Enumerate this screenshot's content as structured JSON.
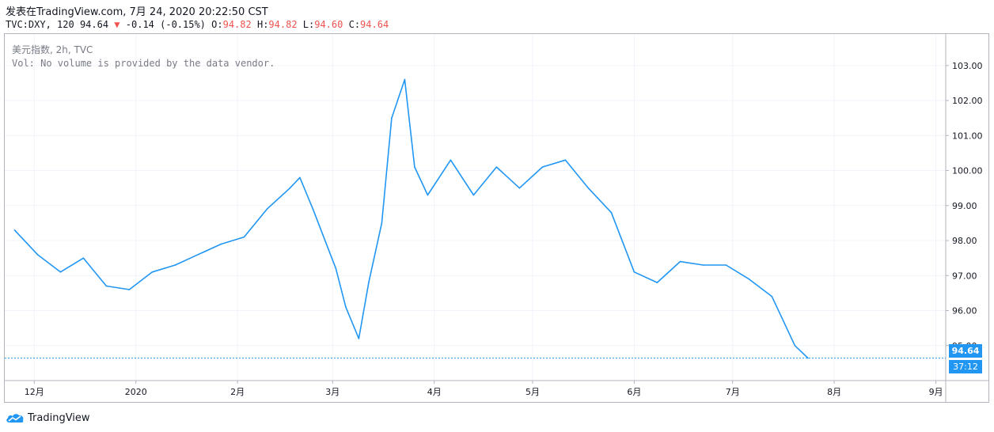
{
  "header": {
    "line1": "发表在TradingView.com, 7月 24, 2020 20:22:50 CST",
    "symbol": "TVC:DXY, 120",
    "last": "94.64",
    "down_arrow": "▼",
    "change": "-0.14 (-0.15%)",
    "o_label": "O:",
    "o_val": "94.82",
    "h_label": "H:",
    "h_val": "94.82",
    "l_label": "L:",
    "l_val": "94.60",
    "c_label": "C:",
    "c_val": "94.64"
  },
  "legend": {
    "title": "美元指数, 2h, TVC",
    "volume_note": "Vol: No volume is provided by the data vendor."
  },
  "badges": {
    "price": "94.64",
    "countdown": "37:12"
  },
  "brand": {
    "name": "TradingView",
    "logo_icon": "tradingview-cloud-icon"
  },
  "colors": {
    "line": "#2196f3",
    "grid": "#f0f3fa",
    "axis_text": "#131722",
    "price_badge": "#2196f3",
    "down": "#ef5350"
  },
  "chart_data": {
    "type": "line",
    "series": [
      {
        "x": [
          "2019-11-25",
          "2019-12-02",
          "2019-12-09",
          "2019-12-16",
          "2019-12-23",
          "2019-12-30",
          "2020-01-06",
          "2020-01-13",
          "2020-01-20",
          "2020-01-27",
          "2020-02-03",
          "2020-02-10",
          "2020-02-17",
          "2020-02-20",
          "2020-02-24",
          "2020-03-02",
          "2020-03-05",
          "2020-03-09",
          "2020-03-12",
          "2020-03-16",
          "2020-03-19",
          "2020-03-23",
          "2020-03-26",
          "2020-03-30",
          "2020-04-06",
          "2020-04-13",
          "2020-04-20",
          "2020-04-27",
          "2020-05-04",
          "2020-05-11",
          "2020-05-18",
          "2020-05-25",
          "2020-06-01",
          "2020-06-08",
          "2020-06-15",
          "2020-06-22",
          "2020-06-29",
          "2020-07-06",
          "2020-07-13",
          "2020-07-20",
          "2020-07-24"
        ],
        "values": [
          98.3,
          97.6,
          97.1,
          97.5,
          96.7,
          96.6,
          97.1,
          97.3,
          97.6,
          97.9,
          98.1,
          98.9,
          99.5,
          99.8,
          98.9,
          97.2,
          96.1,
          95.2,
          96.8,
          98.5,
          101.5,
          102.6,
          100.1,
          99.3,
          100.3,
          99.3,
          100.1,
          99.5,
          100.1,
          100.3,
          99.5,
          98.8,
          97.1,
          96.8,
          97.4,
          97.3,
          97.3,
          96.9,
          96.4,
          95.0,
          94.64
        ]
      }
    ],
    "y_ticks": [
      "95.00",
      "96.00",
      "97.00",
      "98.00",
      "99.00",
      "100.00",
      "101.00",
      "102.00",
      "103.00"
    ],
    "x_ticks": [
      "12月",
      "2020",
      "2月",
      "3月",
      "4月",
      "5月",
      "6月",
      "7月",
      "8月",
      "9月"
    ],
    "ylim": [
      94.0,
      103.9
    ],
    "x_range": [
      "2019-11-22",
      "2020-09-04"
    ],
    "current_price": 94.64,
    "grid": true
  }
}
